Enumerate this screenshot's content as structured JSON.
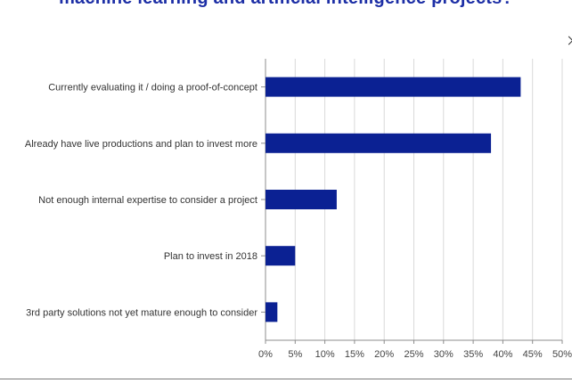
{
  "chart_data": {
    "type": "bar",
    "orientation": "horizontal",
    "title": "machine learning and artificial intelligence projects?",
    "categories": [
      "Currently evaluating it / doing a proof-of-concept",
      "Already have live productions and plan to invest more",
      "Not enough internal expertise to consider a project",
      "Plan to invest in 2018",
      "3rd party solutions not yet mature enough to consider"
    ],
    "values": [
      43,
      38,
      12,
      5,
      2
    ],
    "xlim": [
      0,
      50
    ],
    "x_ticks": [
      "0%",
      "5%",
      "10%",
      "15%",
      "20%",
      "25%",
      "30%",
      "35%",
      "40%",
      "45%",
      "50%"
    ],
    "grid": "vertical",
    "bar_color": "#0b2193"
  }
}
